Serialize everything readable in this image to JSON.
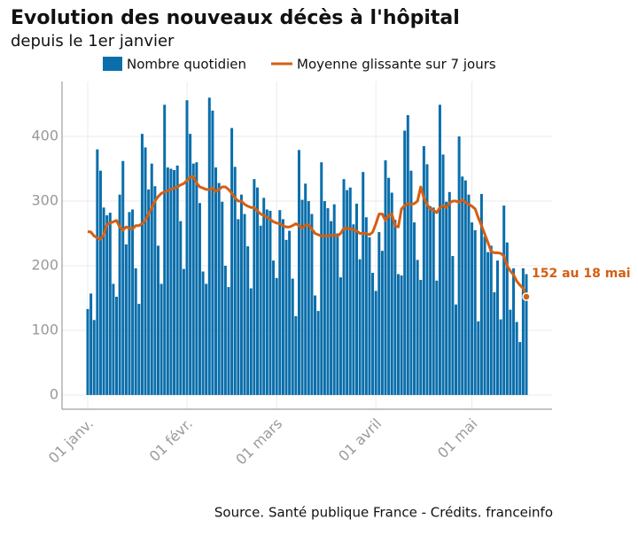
{
  "chart_data": {
    "type": "bar_line",
    "title": "Evolution des nouveaux décès à l'hôpital",
    "subtitle": "depuis le 1er janvier",
    "source": "Source. Santé publique France - Crédits. franceinfo",
    "annotation": "152 au 18 mai",
    "categories": [
      "01 janv.",
      null,
      null,
      null,
      null,
      null,
      null,
      null,
      null,
      null,
      null,
      null,
      null,
      null,
      null,
      null,
      null,
      null,
      null,
      null,
      null,
      null,
      null,
      null,
      null,
      null,
      null,
      null,
      null,
      null,
      null,
      "01 févr.",
      null,
      null,
      null,
      null,
      null,
      null,
      null,
      null,
      null,
      null,
      null,
      null,
      null,
      null,
      null,
      null,
      null,
      null,
      null,
      null,
      null,
      null,
      null,
      null,
      null,
      null,
      null,
      "01 mars",
      null,
      null,
      null,
      null,
      null,
      null,
      null,
      null,
      null,
      null,
      null,
      null,
      null,
      null,
      null,
      null,
      null,
      null,
      null,
      null,
      null,
      null,
      null,
      null,
      null,
      null,
      null,
      null,
      null,
      null,
      "01 avril",
      null,
      null,
      null,
      null,
      null,
      null,
      null,
      null,
      null,
      null,
      null,
      null,
      null,
      null,
      null,
      null,
      null,
      null,
      null,
      null,
      null,
      null,
      null,
      null,
      null,
      null,
      null,
      null,
      null,
      "01 mai",
      null,
      null,
      null,
      null,
      null,
      null,
      null,
      null,
      null,
      null,
      null,
      null,
      null,
      null,
      null,
      null,
      null
    ],
    "series": [
      {
        "name": "Nombre quotidien",
        "color": "#0a6eab",
        "values": [
          133,
          157,
          116,
          380,
          347,
          290,
          278,
          282,
          172,
          152,
          310,
          362,
          233,
          283,
          287,
          196,
          141,
          404,
          383,
          318,
          358,
          323,
          231,
          172,
          449,
          352,
          350,
          348,
          355,
          269,
          195,
          456,
          404,
          358,
          360,
          297,
          191,
          172,
          460,
          440,
          352,
          328,
          299,
          200,
          167,
          413,
          353,
          272,
          310,
          280,
          230,
          165,
          334,
          321,
          262,
          305,
          287,
          285,
          208,
          181,
          286,
          272,
          240,
          254,
          180,
          122,
          379,
          302,
          327,
          300,
          280,
          154,
          130,
          360,
          300,
          289,
          269,
          295,
          250,
          182,
          334,
          317,
          321,
          264,
          296,
          210,
          345,
          275,
          244,
          189,
          161,
          252,
          223,
          363,
          336,
          313,
          271,
          187,
          185,
          409,
          433,
          347,
          267,
          209,
          178,
          385,
          357,
          292,
          290,
          177,
          449,
          372,
          299,
          314,
          215,
          140,
          400,
          338,
          332,
          310,
          267,
          255,
          114,
          311,
          245,
          221,
          231,
          159,
          208,
          117,
          293,
          236,
          132,
          196,
          113,
          82,
          196,
          187
        ]
      },
      {
        "name": "Moyenne glissante sur 7 jours",
        "color": "#d45f12",
        "values": [
          253,
          252,
          246,
          243,
          241,
          248,
          264,
          266,
          268,
          270,
          260,
          255,
          260,
          258,
          257,
          262,
          262,
          265,
          270,
          280,
          290,
          300,
          307,
          312,
          314,
          316,
          318,
          320,
          322,
          325,
          327,
          332,
          337,
          338,
          328,
          322,
          320,
          318,
          318,
          320,
          315,
          318,
          322,
          322,
          318,
          312,
          305,
          300,
          300,
          295,
          292,
          290,
          290,
          285,
          280,
          278,
          275,
          272,
          268,
          266,
          265,
          262,
          260,
          260,
          262,
          265,
          262,
          258,
          263,
          263,
          257,
          250,
          248,
          246,
          246,
          246,
          247,
          247,
          246,
          250,
          258,
          258,
          257,
          256,
          254,
          250,
          250,
          250,
          248,
          252,
          265,
          280,
          280,
          270,
          278,
          280,
          262,
          260,
          288,
          293,
          296,
          295,
          296,
          300,
          322,
          305,
          295,
          288,
          286,
          282,
          290,
          293,
          290,
          297,
          300,
          300,
          298,
          302,
          298,
          295,
          292,
          288,
          274,
          262,
          249,
          236,
          222,
          220,
          220,
          219,
          215,
          200,
          192,
          186,
          176,
          170,
          165,
          152
        ]
      }
    ],
    "ylim": [
      -22,
      485
    ],
    "yticks": [
      0,
      100,
      200,
      300,
      400
    ],
    "grid": true
  }
}
